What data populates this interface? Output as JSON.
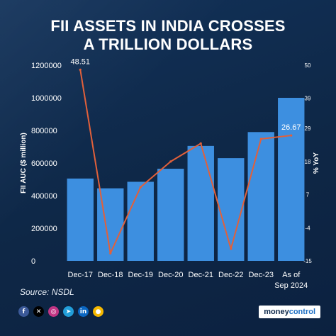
{
  "title_line1": "FII ASSETS IN INDIA CROSSES",
  "title_line2": "A TRILLION DOLLARS",
  "source": "Source: NSDL",
  "brand": "moneycontrol",
  "social_icons": [
    "facebook-icon",
    "x-icon",
    "instagram-icon",
    "telegram-icon",
    "linkedin-icon",
    "koo-icon"
  ],
  "colors": {
    "background": "#0f2a4c",
    "bar": "#3d8fe0",
    "line": "#e2603a",
    "text": "#ffffff"
  },
  "chart_data": {
    "type": "bar",
    "categories": [
      "Dec-17",
      "Dec-18",
      "Dec-19",
      "Dec-20",
      "Dec-21",
      "Dec-22",
      "Dec-23",
      "As of Sep 2024"
    ],
    "series": [
      {
        "type": "bar",
        "axis": "left",
        "values": [
          505000,
          445000,
          485000,
          565000,
          705000,
          630000,
          790000,
          1000000
        ]
      },
      {
        "type": "line",
        "axis": "right",
        "values": [
          48.51,
          -12.5,
          9.5,
          18.0,
          24.0,
          -11.0,
          25.5,
          26.67
        ]
      }
    ],
    "data_labels": [
      {
        "index": 0,
        "series": 1,
        "text": "48.51"
      },
      {
        "index": 7,
        "series": 1,
        "text": "26.67"
      }
    ],
    "ylabel": "FII AUC ($ million)",
    "y2label": "% YoY",
    "ylim": [
      0,
      1200000
    ],
    "y2lim": [
      -15,
      50
    ],
    "yticks": [
      0,
      200000,
      400000,
      600000,
      800000,
      1000000,
      1200000
    ],
    "y2ticks": [
      -15,
      -4,
      7,
      18,
      29,
      39,
      50
    ],
    "legend": "none",
    "grid": false
  }
}
